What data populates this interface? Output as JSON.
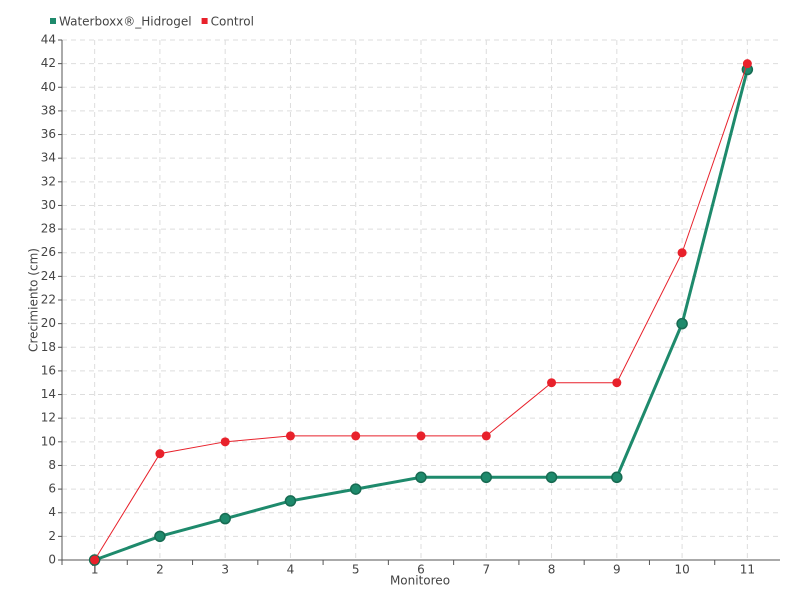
{
  "chart_data": {
    "type": "line",
    "x_label": "Monitoreo",
    "y_label": "Crecimiento (cm)",
    "categories": [
      "1",
      "2",
      "3",
      "4",
      "5",
      "6",
      "7",
      "8",
      "9",
      "10",
      "11"
    ],
    "series": [
      {
        "name": "Waterboxx®_Hidrogel",
        "color": "#1e8a6c",
        "values": [
          0,
          2,
          3.5,
          5,
          6,
          7,
          7,
          7,
          7,
          20,
          41.5
        ]
      },
      {
        "name": "Control",
        "color": "#e8212b",
        "values": [
          0,
          9,
          10,
          10.5,
          10.5,
          10.5,
          10.5,
          15,
          15,
          26,
          42
        ]
      }
    ],
    "ylim": [
      0,
      44
    ],
    "yticks": [
      0,
      2,
      4,
      6,
      8,
      10,
      12,
      14,
      16,
      18,
      20,
      22,
      24,
      26,
      28,
      30,
      32,
      34,
      36,
      38,
      40,
      42,
      44
    ],
    "grid": true,
    "legend": "top-left"
  }
}
